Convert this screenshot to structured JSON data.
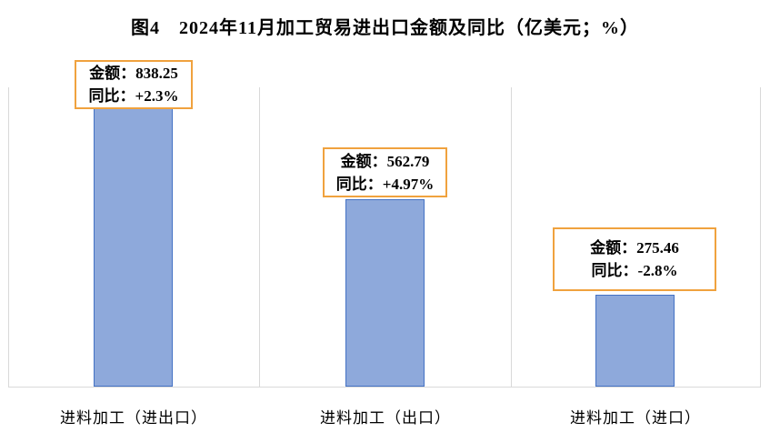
{
  "chart_data": {
    "type": "bar",
    "title": "图4　2024年11月加工贸易进出口金额及同比（亿美元；%）",
    "categories": [
      "进料加工（进出口）",
      "进料加工（出口）",
      "进料加工（进口）"
    ],
    "values": [
      838.25,
      562.79,
      275.46
    ],
    "yoy_percent": [
      2.3,
      4.97,
      -2.8
    ],
    "unit": "亿美元；%",
    "callouts": [
      {
        "amount_line": "金额：838.25",
        "yoy_line": "同比：+2.3%"
      },
      {
        "amount_line": "金额：562.79",
        "yoy_line": "同比：+4.97%"
      },
      {
        "amount_line": "金额：275.46",
        "yoy_line": "同比：-2.8%"
      }
    ],
    "xlabel": "",
    "ylabel": "",
    "ylim": [
      0,
      900
    ],
    "grid": "vertical category separators only, no y-axis ticks",
    "legend": "none",
    "colors": {
      "bar_fill": "#8EA9DB",
      "bar_border": "#4472C4",
      "callout_border": "#F0A23E",
      "axis_line": "#D9D9D9"
    }
  }
}
